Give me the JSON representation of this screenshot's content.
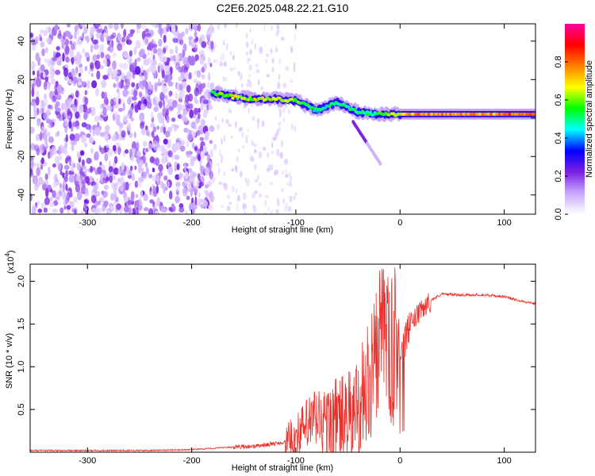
{
  "title": "C2E6.2025.048.22.21.G10",
  "chart_data": [
    {
      "type": "heatmap",
      "xlabel": "Height of straight line (km)",
      "ylabel": "Frequency (Hz)",
      "xlim": [
        -355,
        130
      ],
      "ylim": [
        -50,
        49
      ],
      "xticks": [
        -300,
        -200,
        -100,
        0,
        100
      ],
      "yticks": [
        -40,
        -20,
        0,
        20,
        40
      ],
      "grid": false,
      "colorbar": {
        "label": "Normalized spectral amplitude",
        "range": [
          0,
          1
        ],
        "ticks": [
          "0.0",
          "0.2",
          "0.4",
          "0.6",
          "0.8"
        ],
        "colors": [
          "#ffffff",
          "#c8a8ff",
          "#7b1fe0",
          "#0000ff",
          "#00ffff",
          "#00ff00",
          "#ffff00",
          "#ff8000",
          "#ff0000",
          "#ff00a0"
        ]
      },
      "ridge": {
        "x": [
          -180,
          -160,
          -140,
          -120,
          -100,
          -80,
          -60,
          -40,
          -20,
          0,
          20,
          40,
          60,
          80,
          100,
          130
        ],
        "y": [
          13,
          11,
          10,
          10,
          9,
          4,
          8,
          3,
          2,
          2,
          2,
          2,
          2,
          2,
          2,
          2
        ],
        "amplitude": [
          0.6,
          0.7,
          0.7,
          0.7,
          0.65,
          0.5,
          0.55,
          0.5,
          0.6,
          0.75,
          0.8,
          0.8,
          0.8,
          0.8,
          0.85,
          0.85
        ]
      }
    },
    {
      "type": "line",
      "xlabel": "Height of straight line (km)",
      "ylabel": "SNR (10 * v/v)",
      "multiplier": "(x10",
      "multiplier_exp": "4",
      "multiplier_close": ")",
      "xlim": [
        -355,
        130
      ],
      "ylim": [
        0,
        2.2
      ],
      "xticks": [
        -300,
        -200,
        -100,
        0,
        100
      ],
      "yticks": [
        "0.5",
        "1.0",
        "1.5",
        "2.0"
      ],
      "grid": false,
      "series": [
        {
          "color": "#e8322d",
          "x": [
            -355,
            -300,
            -250,
            -200,
            -160,
            -140,
            -120,
            -110,
            -100,
            -90,
            -80,
            -70,
            -60,
            -50,
            -45,
            -40,
            -35,
            -30,
            -25,
            -20,
            -15,
            -10,
            -5,
            0,
            5,
            10,
            20,
            30,
            40,
            60,
            80,
            100,
            120,
            130
          ],
          "y": [
            0.02,
            0.02,
            0.02,
            0.03,
            0.06,
            0.07,
            0.1,
            0.12,
            0.18,
            0.3,
            0.4,
            0.3,
            0.4,
            0.35,
            0.4,
            0.6,
            0.7,
            0.8,
            1.0,
            1.3,
            1.5,
            1.1,
            1.3,
            1.2,
            1.3,
            1.5,
            1.65,
            1.78,
            1.85,
            1.84,
            1.84,
            1.82,
            1.76,
            1.74
          ]
        }
      ]
    }
  ]
}
